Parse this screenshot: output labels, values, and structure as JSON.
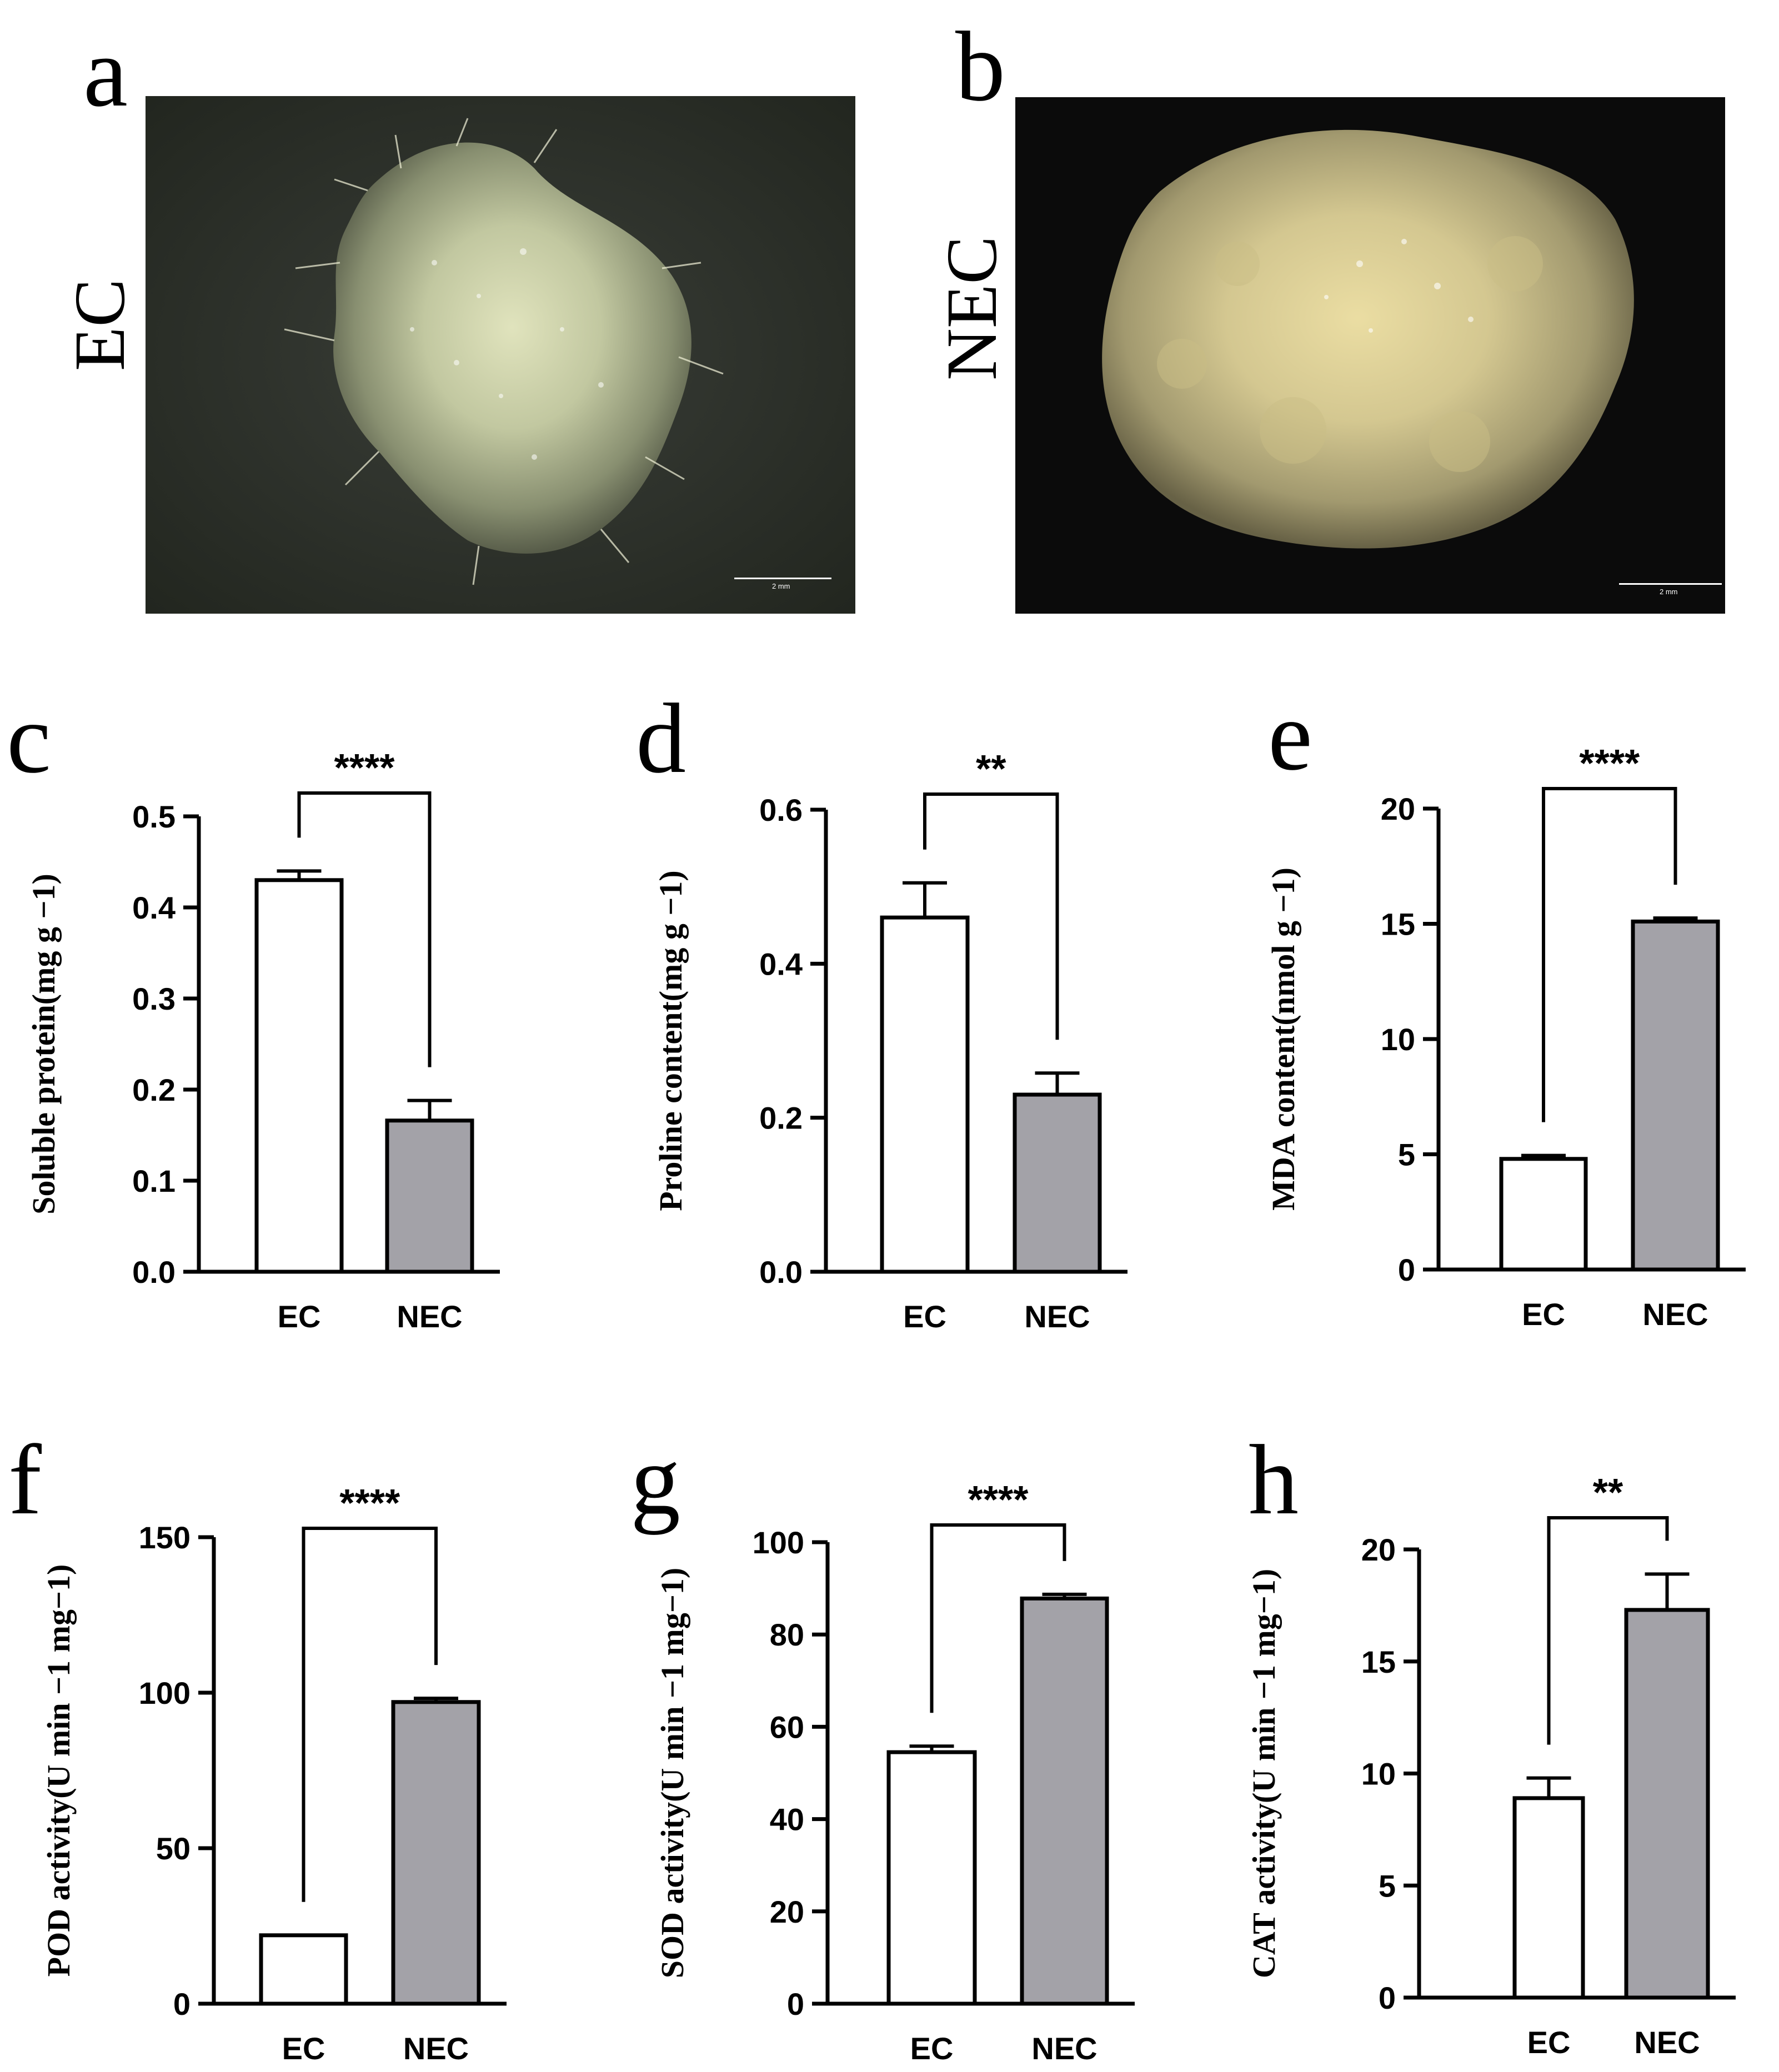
{
  "panels": {
    "a": {
      "letter": "a",
      "label": "EC",
      "scale": "2 mm"
    },
    "b": {
      "letter": "b",
      "label": "NEC",
      "scale": "2 mm"
    }
  },
  "colors": {
    "ec_bar": "#ffffff",
    "nec_bar": "#a3a2a8",
    "axis": "#000000",
    "photo_a_bg": "#2a2e2a",
    "photo_b_bg": "#0b0b0b"
  },
  "chart_data": [
    {
      "id": "c",
      "letter": "c",
      "type": "bar",
      "categories": [
        "EC",
        "NEC"
      ],
      "values": [
        0.43,
        0.166
      ],
      "errors": [
        0.01,
        0.022
      ],
      "ylabel": "Soluble protein(mg g −1)",
      "ylim": [
        0,
        0.5
      ],
      "yticks": [
        "0.0",
        "0.1",
        "0.2",
        "0.3",
        "0.4",
        "0.5"
      ],
      "significance": "****"
    },
    {
      "id": "d",
      "letter": "d",
      "type": "bar",
      "categories": [
        "EC",
        "NEC"
      ],
      "values": [
        0.46,
        0.23
      ],
      "errors": [
        0.045,
        0.028
      ],
      "ylabel": "Proline content(mg g −1)",
      "ylim": [
        0,
        0.6
      ],
      "yticks": [
        "0.0",
        "0.2",
        "0.4",
        "0.6"
      ],
      "significance": "**"
    },
    {
      "id": "e",
      "letter": "e",
      "type": "bar",
      "categories": [
        "EC",
        "NEC"
      ],
      "values": [
        4.8,
        15.1
      ],
      "errors": [
        0.15,
        0.15
      ],
      "ylabel": "MDA content(nmol g −1)",
      "ylim": [
        0,
        20
      ],
      "yticks": [
        "0",
        "5",
        "10",
        "15",
        "20"
      ],
      "significance": "****"
    },
    {
      "id": "f",
      "letter": "f",
      "type": "bar",
      "categories": [
        "EC",
        "NEC"
      ],
      "values": [
        22,
        97
      ],
      "errors": [
        0,
        1.2
      ],
      "ylabel": "POD activity(U min −1 mg−1)",
      "ylim": [
        0,
        150
      ],
      "yticks": [
        "0",
        "50",
        "100",
        "150"
      ],
      "significance": "****"
    },
    {
      "id": "g",
      "letter": "g",
      "type": "bar",
      "categories": [
        "EC",
        "NEC"
      ],
      "values": [
        54.5,
        87.8
      ],
      "errors": [
        1.3,
        0.9
      ],
      "ylabel": "SOD activity(U min −1 mg−1)",
      "ylim": [
        0,
        100
      ],
      "yticks": [
        "0",
        "20",
        "40",
        "60",
        "80",
        "100"
      ],
      "significance": "****"
    },
    {
      "id": "h",
      "letter": "h",
      "type": "bar",
      "categories": [
        "EC",
        "NEC"
      ],
      "values": [
        8.9,
        17.3
      ],
      "errors": [
        0.9,
        1.6
      ],
      "ylabel": "CAT activity(U min −1 mg−1)",
      "ylim": [
        0,
        20
      ],
      "yticks": [
        "0",
        "5",
        "10",
        "15",
        "20"
      ],
      "significance": "**"
    }
  ]
}
